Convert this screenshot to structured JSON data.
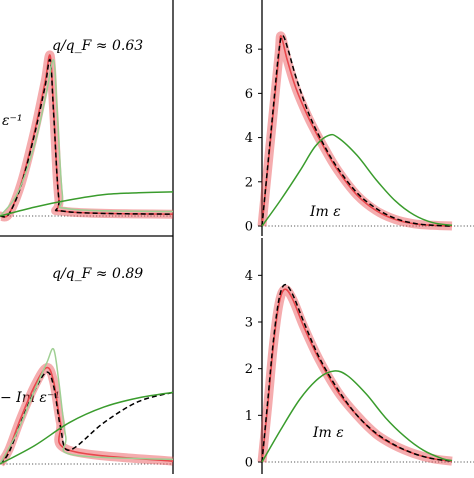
{
  "chart_data": [
    {
      "panel": "top-left",
      "type": "line",
      "annotations": {
        "ratio": "q/q_F ≈ 0.63",
        "curve_label": "ε⁻¹"
      },
      "series": [
        {
          "style": "red-band",
          "color": "#e8474c",
          "points": [
            [
              0,
              0
            ],
            [
              0.05,
              0.02
            ],
            [
              0.12,
              0.35
            ],
            [
              0.2,
              0.95
            ],
            [
              0.26,
              1.5
            ],
            [
              0.29,
              1.8
            ],
            [
              0.31,
              1.2
            ],
            [
              0.34,
              0.2
            ],
            [
              0.38,
              0.05
            ],
            [
              1,
              0.02
            ]
          ]
        },
        {
          "style": "black-dashed",
          "color": "#000000",
          "points": [
            [
              0,
              0
            ],
            [
              0.05,
              0.02
            ],
            [
              0.12,
              0.33
            ],
            [
              0.2,
              0.92
            ],
            [
              0.26,
              1.45
            ],
            [
              0.29,
              1.75
            ],
            [
              0.31,
              1.15
            ],
            [
              0.34,
              0.2
            ],
            [
              0.38,
              0.05
            ],
            [
              1,
              0.02
            ]
          ]
        },
        {
          "style": "light-green",
          "color": "#9fcf93",
          "points": [
            [
              0,
              0
            ],
            [
              0.1,
              0.25
            ],
            [
              0.2,
              0.8
            ],
            [
              0.27,
              1.4
            ],
            [
              0.31,
              1.75
            ],
            [
              0.33,
              1.2
            ],
            [
              0.36,
              0.25
            ],
            [
              0.4,
              0.08
            ],
            [
              1,
              0.05
            ]
          ]
        },
        {
          "style": "green",
          "color": "#3a9c2d",
          "points": [
            [
              0,
              0
            ],
            [
              0.2,
              0.1
            ],
            [
              0.4,
              0.18
            ],
            [
              0.6,
              0.24
            ],
            [
              0.8,
              0.26
            ],
            [
              1,
              0.27
            ]
          ]
        }
      ]
    },
    {
      "panel": "top-right",
      "type": "line",
      "annotations": {
        "curve_label": "Im ε"
      },
      "y_ticks": [
        "0",
        "2",
        "4",
        "6",
        "8"
      ],
      "ylim": [
        0,
        9.5
      ],
      "xlim": [
        0,
        1
      ],
      "series": [
        {
          "style": "red-band",
          "color": "#e8474c",
          "points": [
            [
              0,
              0
            ],
            [
              0.03,
              2.6
            ],
            [
              0.06,
              5.2
            ],
            [
              0.09,
              7.8
            ],
            [
              0.1,
              8.6
            ],
            [
              0.13,
              7.6
            ],
            [
              0.18,
              6.2
            ],
            [
              0.25,
              4.8
            ],
            [
              0.33,
              3.5
            ],
            [
              0.4,
              2.5
            ],
            [
              0.5,
              1.4
            ],
            [
              0.6,
              0.7
            ],
            [
              0.7,
              0.3
            ],
            [
              0.8,
              0.1
            ],
            [
              0.9,
              0.03
            ],
            [
              1,
              0
            ]
          ]
        },
        {
          "style": "black-dashed",
          "color": "#000000",
          "points": [
            [
              0,
              0
            ],
            [
              0.03,
              2.7
            ],
            [
              0.06,
              5.4
            ],
            [
              0.09,
              8.0
            ],
            [
              0.11,
              8.6
            ],
            [
              0.14,
              7.9
            ],
            [
              0.18,
              6.7
            ],
            [
              0.25,
              5.0
            ],
            [
              0.33,
              3.6
            ],
            [
              0.4,
              2.6
            ],
            [
              0.5,
              1.5
            ],
            [
              0.6,
              0.8
            ],
            [
              0.7,
              0.35
            ],
            [
              0.8,
              0.12
            ],
            [
              0.9,
              0.03
            ],
            [
              1,
              0
            ]
          ]
        },
        {
          "style": "green",
          "color": "#3a9c2d",
          "points": [
            [
              0,
              0
            ],
            [
              0.1,
              1.2
            ],
            [
              0.2,
              2.5
            ],
            [
              0.28,
              3.6
            ],
            [
              0.35,
              4.1
            ],
            [
              0.4,
              4.0
            ],
            [
              0.5,
              3.2
            ],
            [
              0.6,
              2.1
            ],
            [
              0.7,
              1.15
            ],
            [
              0.8,
              0.5
            ],
            [
              0.9,
              0.15
            ],
            [
              1,
              0.03
            ]
          ]
        }
      ]
    },
    {
      "panel": "bottom-left",
      "type": "line",
      "annotations": {
        "ratio": "q/q_F ≈ 0.89",
        "curve_label": "− Im ε⁻¹"
      },
      "series": [
        {
          "style": "red-band",
          "color": "#e8474c",
          "points": [
            [
              0,
              0
            ],
            [
              0.05,
              0.15
            ],
            [
              0.12,
              0.5
            ],
            [
              0.2,
              0.85
            ],
            [
              0.27,
              1.05
            ],
            [
              0.31,
              0.9
            ],
            [
              0.35,
              0.45
            ],
            [
              0.4,
              0.15
            ],
            [
              1,
              0.03
            ]
          ]
        },
        {
          "style": "black-dashed",
          "color": "#000000",
          "points": [
            [
              0,
              0
            ],
            [
              0.05,
              0.12
            ],
            [
              0.12,
              0.45
            ],
            [
              0.2,
              0.8
            ],
            [
              0.27,
              1.0
            ],
            [
              0.31,
              0.85
            ],
            [
              0.35,
              0.4
            ],
            [
              0.4,
              0.15
            ],
            [
              0.6,
              0.45
            ],
            [
              0.8,
              0.68
            ],
            [
              1,
              0.78
            ]
          ]
        },
        {
          "style": "light-green",
          "color": "#9fcf93",
          "points": [
            [
              0,
              0
            ],
            [
              0.1,
              0.35
            ],
            [
              0.2,
              0.8
            ],
            [
              0.27,
              1.1
            ],
            [
              0.31,
              1.25
            ],
            [
              0.34,
              0.9
            ],
            [
              0.38,
              0.3
            ],
            [
              0.42,
              0.1
            ],
            [
              1,
              0.05
            ]
          ]
        },
        {
          "style": "green",
          "color": "#3a9c2d",
          "points": [
            [
              0,
              0
            ],
            [
              0.2,
              0.2
            ],
            [
              0.4,
              0.45
            ],
            [
              0.6,
              0.62
            ],
            [
              0.8,
              0.72
            ],
            [
              1,
              0.78
            ]
          ]
        }
      ]
    },
    {
      "panel": "bottom-right",
      "type": "line",
      "annotations": {
        "curve_label": "Im ε"
      },
      "y_ticks": [
        "0",
        "1",
        "2",
        "3",
        "4"
      ],
      "ylim": [
        0,
        4.5
      ],
      "xlim": [
        0,
        1
      ],
      "series": [
        {
          "style": "red-band",
          "color": "#e8474c",
          "points": [
            [
              0,
              0
            ],
            [
              0.03,
              1.2
            ],
            [
              0.06,
              2.5
            ],
            [
              0.09,
              3.4
            ],
            [
              0.12,
              3.7
            ],
            [
              0.16,
              3.5
            ],
            [
              0.22,
              2.9
            ],
            [
              0.3,
              2.2
            ],
            [
              0.4,
              1.5
            ],
            [
              0.5,
              1.0
            ],
            [
              0.6,
              0.6
            ],
            [
              0.7,
              0.35
            ],
            [
              0.8,
              0.18
            ],
            [
              0.9,
              0.07
            ],
            [
              1,
              0.02
            ]
          ]
        },
        {
          "style": "black-dashed",
          "color": "#000000",
          "points": [
            [
              0,
              0
            ],
            [
              0.03,
              1.3
            ],
            [
              0.06,
              2.6
            ],
            [
              0.09,
              3.5
            ],
            [
              0.12,
              3.8
            ],
            [
              0.16,
              3.6
            ],
            [
              0.22,
              3.0
            ],
            [
              0.3,
              2.25
            ],
            [
              0.4,
              1.55
            ],
            [
              0.5,
              1.0
            ],
            [
              0.6,
              0.62
            ],
            [
              0.7,
              0.36
            ],
            [
              0.8,
              0.18
            ],
            [
              0.9,
              0.07
            ],
            [
              1,
              0.02
            ]
          ]
        },
        {
          "style": "green",
          "color": "#3a9c2d",
          "points": [
            [
              0,
              0
            ],
            [
              0.1,
              0.7
            ],
            [
              0.2,
              1.35
            ],
            [
              0.3,
              1.8
            ],
            [
              0.38,
              1.95
            ],
            [
              0.45,
              1.85
            ],
            [
              0.55,
              1.45
            ],
            [
              0.65,
              0.95
            ],
            [
              0.75,
              0.55
            ],
            [
              0.85,
              0.25
            ],
            [
              0.95,
              0.07
            ],
            [
              1,
              0.03
            ]
          ]
        }
      ]
    }
  ]
}
